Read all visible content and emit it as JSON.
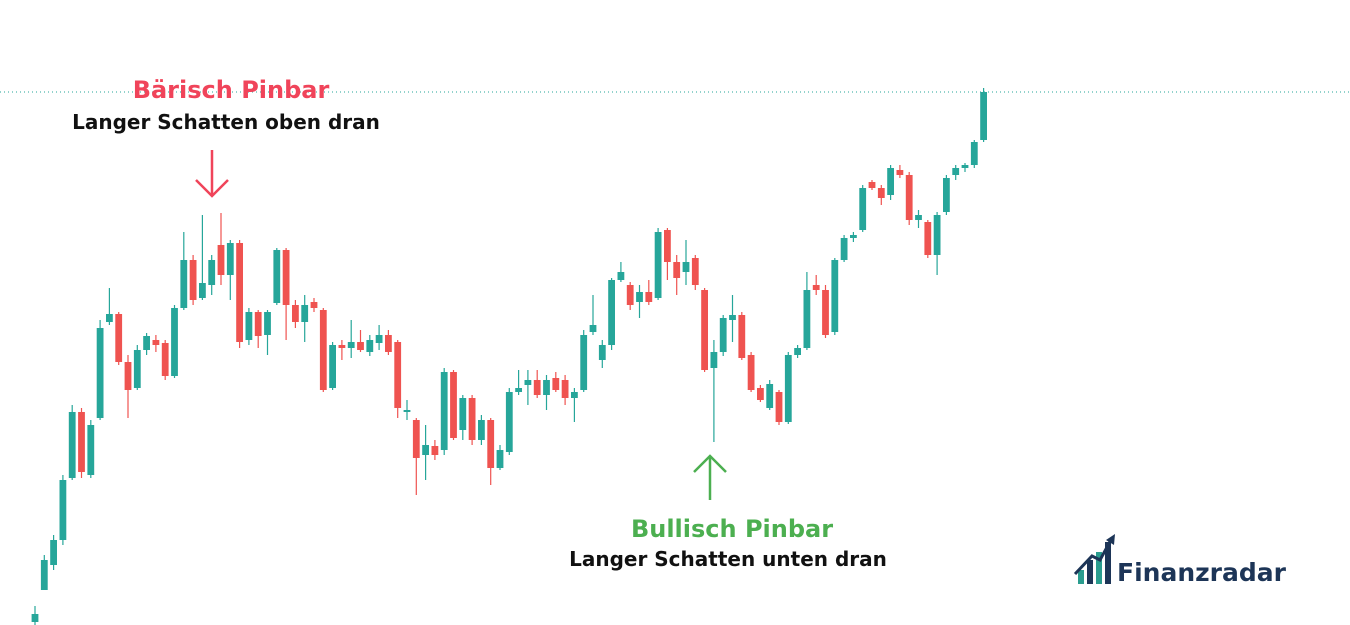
{
  "chart_data": {
    "type": "candlestick",
    "up_color": "#26a69a",
    "down_color": "#ef5350",
    "ylim": [
      0,
      625
    ],
    "reference_line": 533,
    "open": [
      3,
      35,
      60,
      85,
      147,
      213,
      150,
      207,
      303,
      311,
      263,
      237,
      275,
      285,
      282,
      249,
      317,
      365,
      327,
      340,
      380,
      350,
      382,
      285,
      313,
      290,
      322,
      375,
      320,
      303,
      323,
      315,
      237,
      280,
      277,
      283,
      273,
      282,
      290,
      283,
      213,
      205,
      170,
      179,
      175,
      253,
      195,
      227,
      185,
      205,
      157,
      173,
      233,
      240,
      245,
      230,
      247,
      245,
      227,
      235,
      293,
      265,
      280,
      345,
      340,
      323,
      333,
      327,
      395,
      363,
      353,
      367,
      335,
      257,
      273,
      305,
      310,
      270,
      237,
      217,
      233,
      203,
      270,
      277,
      340,
      335,
      293,
      365,
      387,
      395,
      443,
      437,
      430,
      455,
      450,
      405,
      403,
      370,
      413,
      450,
      457,
      460,
      485
    ],
    "high": [
      19,
      70,
      90,
      150,
      220,
      217,
      205,
      305,
      337,
      313,
      270,
      280,
      292,
      290,
      285,
      320,
      393,
      370,
      410,
      370,
      412,
      385,
      385,
      317,
      315,
      315,
      377,
      377,
      325,
      330,
      327,
      317,
      283,
      285,
      305,
      295,
      290,
      300,
      295,
      285,
      225,
      207,
      200,
      185,
      257,
      255,
      230,
      230,
      210,
      207,
      180,
      237,
      255,
      255,
      255,
      250,
      253,
      250,
      237,
      295,
      330,
      285,
      347,
      363,
      343,
      340,
      345,
      397,
      397,
      370,
      385,
      370,
      337,
      285,
      310,
      330,
      313,
      273,
      240,
      245,
      235,
      273,
      280,
      353,
      350,
      340,
      367,
      390,
      393,
      440,
      445,
      440,
      460,
      460,
      453,
      415,
      405,
      413,
      450,
      460,
      462,
      485,
      537
    ],
    "low": [
      0,
      35,
      55,
      80,
      145,
      147,
      147,
      205,
      300,
      260,
      207,
      235,
      270,
      273,
      245,
      247,
      315,
      320,
      325,
      330,
      340,
      325,
      277,
      280,
      277,
      270,
      320,
      285,
      297,
      283,
      313,
      233,
      235,
      265,
      267,
      273,
      269,
      275,
      270,
      207,
      205,
      130,
      145,
      165,
      170,
      185,
      185,
      180,
      180,
      140,
      155,
      170,
      230,
      220,
      227,
      215,
      233,
      220,
      203,
      233,
      290,
      257,
      275,
      343,
      315,
      307,
      320,
      325,
      345,
      330,
      340,
      335,
      253,
      183,
      269,
      283,
      265,
      233,
      223,
      215,
      200,
      201,
      267,
      275,
      330,
      287,
      290,
      363,
      383,
      393,
      435,
      420,
      425,
      447,
      400,
      397,
      367,
      350,
      410,
      445,
      453,
      457,
      483
    ],
    "close": [
      11,
      65,
      85,
      145,
      213,
      153,
      200,
      297,
      311,
      263,
      235,
      275,
      289,
      280,
      249,
      317,
      365,
      325,
      342,
      365,
      350,
      382,
      283,
      313,
      289,
      313,
      375,
      320,
      303,
      320,
      317,
      235,
      280,
      277,
      283,
      275,
      285,
      290,
      273,
      217,
      215,
      167,
      180,
      170,
      253,
      187,
      227,
      185,
      205,
      157,
      175,
      233,
      237,
      245,
      230,
      245,
      235,
      227,
      233,
      290,
      300,
      280,
      345,
      353,
      320,
      333,
      323,
      393,
      363,
      347,
      363,
      340,
      255,
      273,
      307,
      310,
      267,
      235,
      225,
      241,
      203,
      270,
      277,
      335,
      335,
      290,
      365,
      387,
      390,
      437,
      437,
      427,
      457,
      450,
      405,
      410,
      370,
      410,
      447,
      457,
      460,
      483,
      533
    ],
    "annotations": [
      {
        "title": "Bärisch Pinbar",
        "text": "Langer Schatten oben dran",
        "color": "#f0445a"
      },
      {
        "title": "Bullisch Pinbar",
        "text": "Langer Schatten unten dran",
        "color": "#4caf50"
      }
    ],
    "logo": "Finanzradar"
  }
}
